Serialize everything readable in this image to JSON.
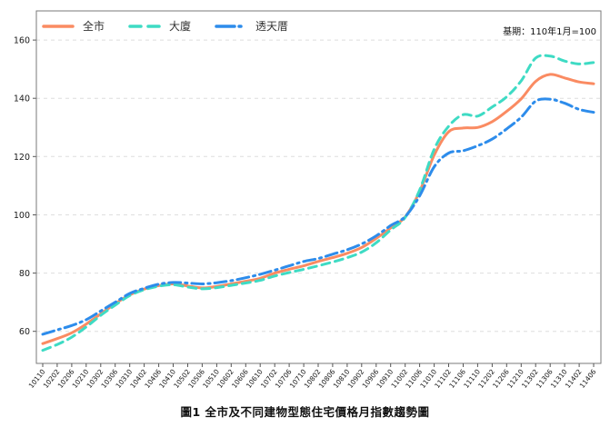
{
  "chart_data": {
    "type": "line",
    "title": "圖1 全市及不同建物型態住宅價格月指數趨勢圖",
    "annotation": "基期：110年1月=100",
    "xlabel": "",
    "ylabel": "",
    "ylim": [
      49,
      170
    ],
    "yticks": [
      60,
      80,
      100,
      120,
      140,
      160
    ],
    "grid": "horizontal-dashed",
    "legend_position": "top-left-inside",
    "x_tick_labels": [
      "10110",
      "10202",
      "10206",
      "10210",
      "10302",
      "10306",
      "10310",
      "10402",
      "10406",
      "10410",
      "10502",
      "10506",
      "10510",
      "10602",
      "10606",
      "10610",
      "10702",
      "10706",
      "10710",
      "10802",
      "10806",
      "10810",
      "10902",
      "10906",
      "10910",
      "11002",
      "11006",
      "11010",
      "11102",
      "11106",
      "11110",
      "11202",
      "11206",
      "11210",
      "11302",
      "11306",
      "11310",
      "11402",
      "11406"
    ],
    "series": [
      {
        "name": "全市",
        "color": "#fa8b62",
        "style": "solid",
        "values": [
          55.8,
          57.5,
          59.5,
          62.5,
          66.0,
          69.5,
          72.5,
          74.5,
          75.7,
          76.3,
          75.6,
          74.9,
          75.4,
          76.3,
          77.2,
          78.2,
          80.0,
          81.3,
          82.5,
          84.0,
          85.3,
          86.8,
          88.8,
          91.9,
          95.5,
          99.3,
          108.0,
          120.5,
          128.5,
          129.8,
          130.0,
          132.0,
          135.5,
          139.8,
          145.8,
          148.2,
          147.0,
          145.6,
          145.0
        ]
      },
      {
        "name": "大廈",
        "color": "#3edbc4",
        "style": "dashed",
        "values": [
          53.5,
          55.5,
          58.0,
          61.5,
          65.5,
          69.0,
          72.3,
          74.3,
          75.5,
          76.0,
          75.2,
          74.6,
          75.0,
          75.8,
          76.6,
          77.5,
          79.0,
          80.2,
          81.3,
          82.5,
          83.8,
          85.3,
          87.2,
          90.4,
          94.8,
          99.1,
          108.5,
          122.5,
          130.4,
          134.4,
          133.9,
          137.0,
          140.5,
          146.0,
          153.8,
          154.5,
          152.8,
          151.8,
          152.3
        ]
      },
      {
        "name": "透天厝",
        "color": "#2d8ceb",
        "style": "dashdot",
        "values": [
          59.0,
          60.5,
          62.0,
          64.0,
          67.0,
          70.0,
          73.0,
          74.8,
          76.2,
          76.8,
          76.6,
          76.3,
          76.7,
          77.4,
          78.4,
          79.6,
          81.0,
          82.5,
          84.0,
          85.0,
          86.5,
          88.0,
          90.0,
          92.8,
          96.3,
          99.4,
          106.5,
          116.5,
          121.2,
          122.0,
          123.7,
          126.0,
          129.5,
          133.5,
          139.0,
          139.7,
          138.3,
          136.2,
          135.2
        ]
      }
    ]
  }
}
